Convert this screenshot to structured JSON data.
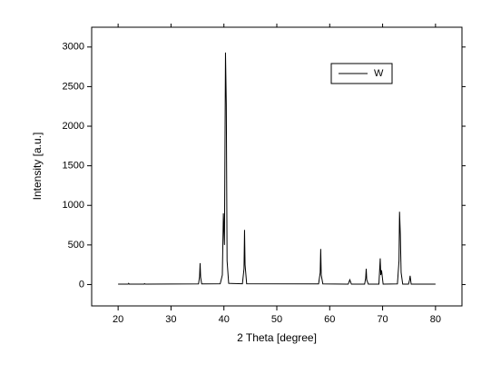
{
  "chart_data": {
    "type": "line",
    "x_label": "2 Theta [degree]",
    "y_label": "Intensity [a.u.]",
    "xlim": [
      15,
      85
    ],
    "xticks": [
      20,
      30,
      40,
      50,
      60,
      70,
      80
    ],
    "ylim": [
      -270,
      3250
    ],
    "yticks": [
      0,
      500,
      1000,
      1500,
      2000,
      2500,
      3000
    ],
    "grid": false,
    "legend": "upper right",
    "x": [
      20,
      21.9,
      22,
      22.1,
      24.9,
      25,
      25.1,
      35.2,
      35.4,
      35.5,
      35.6,
      35.8,
      39.3,
      39.7,
      39.9,
      40.1,
      40.3,
      40.45,
      40.6,
      40.9,
      43.5,
      43.8,
      43.9,
      44.0,
      44.3,
      57.9,
      58.2,
      58.3,
      58.4,
      58.7,
      63.5,
      63.8,
      64.1,
      66.6,
      66.8,
      66.9,
      67.0,
      67.3,
      69.3,
      69.55,
      69.65,
      69.8,
      70.1,
      72.8,
      73.1,
      73.2,
      73.35,
      73.5,
      73.8,
      74.9,
      75.1,
      75.2,
      75.4,
      80
    ],
    "series": [
      {
        "name": "W",
        "color": "#000000",
        "values": [
          5,
          5,
          15,
          5,
          5,
          12,
          5,
          8,
          100,
          270,
          90,
          8,
          10,
          120,
          900,
          500,
          2930,
          2280,
          300,
          15,
          10,
          200,
          690,
          250,
          10,
          8,
          150,
          450,
          120,
          8,
          5,
          60,
          5,
          5,
          80,
          200,
          60,
          5,
          5,
          330,
          120,
          180,
          5,
          8,
          300,
          920,
          630,
          150,
          5,
          5,
          60,
          110,
          5,
          5
        ]
      }
    ]
  }
}
